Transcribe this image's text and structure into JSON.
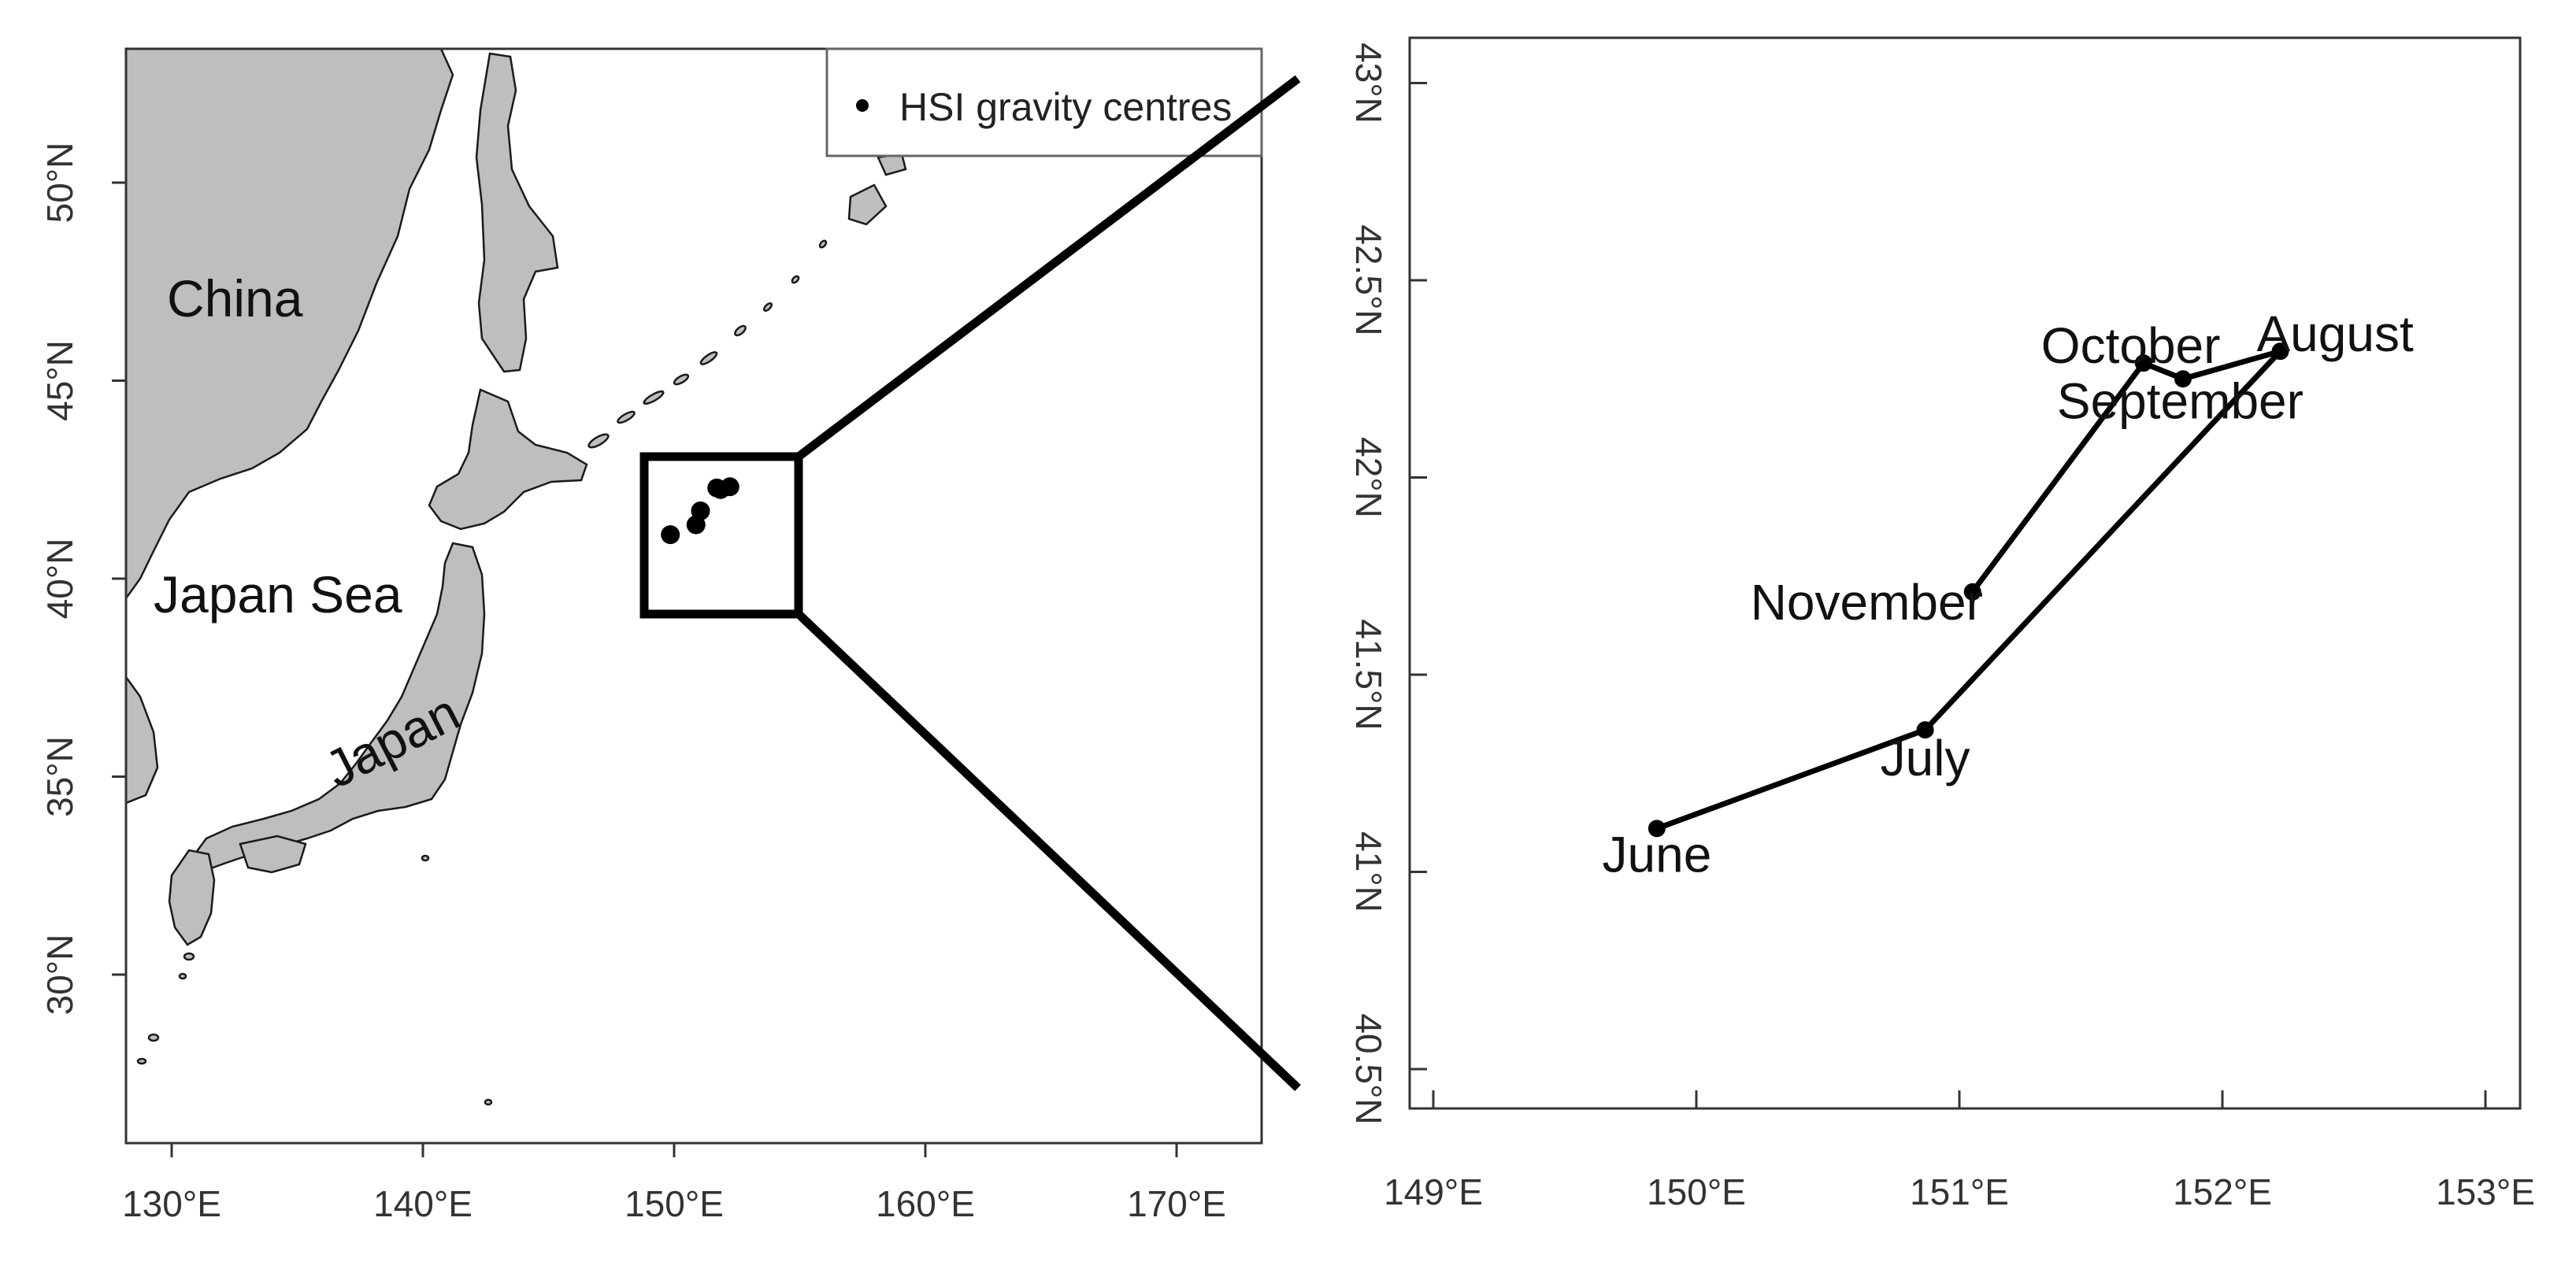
{
  "map": {
    "legend_label": "HSI gravity centres",
    "place_labels": {
      "china": "China",
      "japan_sea": "Japan Sea",
      "japan": "Japan"
    },
    "x_ticks": [
      "130°E",
      "140°E",
      "150°E",
      "160°E",
      "170°E"
    ],
    "y_ticks": [
      "30°N",
      "35°N",
      "40°N",
      "45°N",
      "50°N"
    ],
    "land_color": "#bebebe",
    "coast_color": "#1a1a1a",
    "points": [
      {
        "lon": 149.85,
        "lat": 41.11
      },
      {
        "lon": 150.87,
        "lat": 41.36
      },
      {
        "lon": 151.05,
        "lat": 41.71
      },
      {
        "lon": 151.7,
        "lat": 42.29
      },
      {
        "lon": 151.85,
        "lat": 42.25
      },
      {
        "lon": 152.22,
        "lat": 42.32
      }
    ]
  },
  "chart_data": {
    "type": "line",
    "x_ticks": [
      "149°E",
      "150°E",
      "151°E",
      "152°E",
      "153°E"
    ],
    "y_ticks": [
      "40.5°N",
      "41°N",
      "41.5°N",
      "42°N",
      "42.5°N",
      "43°N"
    ],
    "xlim": [
      148.8,
      153.1
    ],
    "ylim": [
      40.4,
      43.1
    ],
    "points": [
      {
        "label": "June",
        "lon": 149.85,
        "lat": 41.11
      },
      {
        "label": "July",
        "lon": 150.87,
        "lat": 41.36
      },
      {
        "label": "August",
        "lon": 152.22,
        "lat": 42.32
      },
      {
        "label": "September",
        "lon": 151.85,
        "lat": 42.25
      },
      {
        "label": "October",
        "lon": 151.7,
        "lat": 42.29
      },
      {
        "label": "November",
        "lon": 151.05,
        "lat": 41.71
      }
    ]
  }
}
